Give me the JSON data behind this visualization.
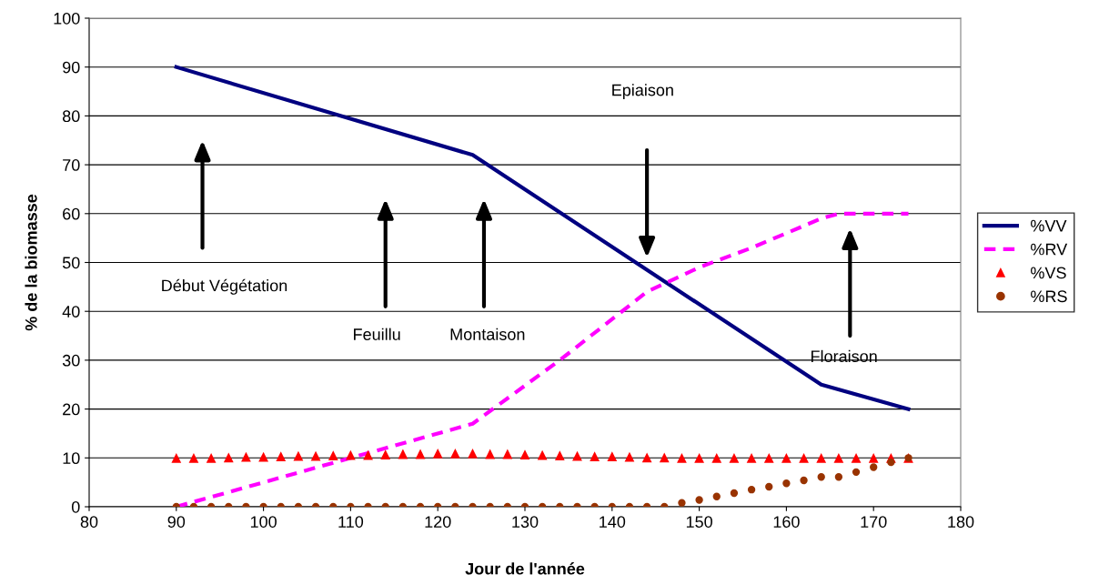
{
  "chart_data": {
    "type": "line",
    "xlabel": "Jour de l'année",
    "ylabel": "% de la biomasse",
    "xlim": [
      80,
      180
    ],
    "xticks": [
      80,
      90,
      100,
      110,
      120,
      130,
      140,
      150,
      160,
      170,
      180
    ],
    "ylim": [
      0,
      100
    ],
    "yticks": [
      0,
      10,
      20,
      30,
      40,
      50,
      60,
      70,
      80,
      90,
      100
    ],
    "grid": "y",
    "legend": "right",
    "series": [
      {
        "name": "%VV",
        "color": "#000080",
        "line_style": "solid",
        "marker": "none",
        "x": [
          90,
          124,
          164,
          174
        ],
        "values": [
          90,
          72,
          25,
          20
        ]
      },
      {
        "name": "%RV",
        "color": "#ff00ff",
        "line_style": "dashed",
        "marker": "none",
        "x": [
          90,
          124,
          134,
          144,
          150,
          156,
          164,
          166,
          174
        ],
        "values": [
          0,
          17,
          30,
          44,
          49,
          53,
          59,
          60,
          60
        ]
      },
      {
        "name": "%VS",
        "type": "scatter",
        "color": "#ff0000",
        "marker": "triangle",
        "x": [
          90,
          92,
          94,
          96,
          98,
          100,
          102,
          104,
          106,
          108,
          110,
          112,
          114,
          116,
          118,
          120,
          122,
          124,
          126,
          128,
          130,
          132,
          134,
          136,
          138,
          140,
          142,
          144,
          146,
          148,
          150,
          152,
          154,
          156,
          158,
          160,
          162,
          164,
          166,
          168,
          170,
          172,
          174
        ],
        "values": [
          10,
          10,
          10,
          10.1,
          10.2,
          10.2,
          10.3,
          10.4,
          10.4,
          10.5,
          10.6,
          10.6,
          10.7,
          10.8,
          10.8,
          10.9,
          10.9,
          10.9,
          10.8,
          10.8,
          10.7,
          10.6,
          10.5,
          10.4,
          10.3,
          10.3,
          10.2,
          10.1,
          10.1,
          10,
          10,
          10,
          10,
          10,
          10,
          10,
          10,
          10,
          10,
          10,
          10,
          10,
          10
        ]
      },
      {
        "name": "%RS",
        "type": "scatter",
        "color": "#993300",
        "marker": "circle",
        "x": [
          90,
          92,
          94,
          96,
          98,
          100,
          102,
          104,
          106,
          108,
          110,
          112,
          114,
          116,
          118,
          120,
          122,
          124,
          126,
          128,
          130,
          132,
          134,
          136,
          138,
          140,
          142,
          144,
          146,
          148,
          150,
          152,
          154,
          156,
          158,
          160,
          162,
          164,
          166,
          168,
          170,
          172,
          174
        ],
        "values": [
          0,
          0,
          0,
          0,
          0,
          0,
          0,
          0,
          0,
          0,
          0,
          0,
          0,
          0,
          0,
          0,
          0,
          0,
          0,
          0,
          0,
          0,
          0,
          0,
          0,
          0,
          0,
          0,
          0,
          0.8,
          1.4,
          2.1,
          2.8,
          3.5,
          4.1,
          4.8,
          5.4,
          6.1,
          6.1,
          7.1,
          8.1,
          9.1,
          10
        ]
      }
    ],
    "annotations": [
      "Début Végétation",
      "Feuillu",
      "Montaison",
      "Epiaison",
      "Floraison"
    ]
  }
}
